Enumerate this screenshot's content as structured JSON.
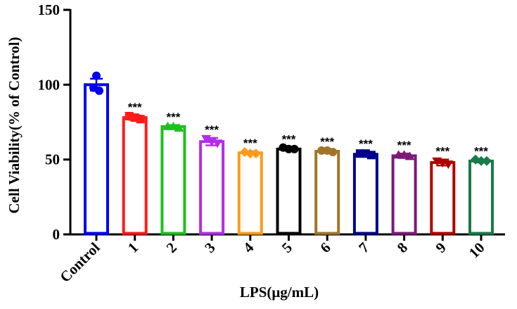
{
  "chart_data": {
    "type": "bar",
    "xlabel": "LPS(μg/mL)",
    "ylabel": "Cell Viability(% of Control)",
    "ylim": [
      0,
      150
    ],
    "yticks": [
      "0",
      "50",
      "100",
      "150"
    ],
    "categories": [
      "Control",
      "1",
      "2",
      "3",
      "4",
      "5",
      "6",
      "7",
      "8",
      "9",
      "10"
    ],
    "values": [
      100,
      78,
      72,
      62,
      54.5,
      57,
      55.5,
      53.5,
      52.5,
      48,
      49
    ],
    "errors": [
      4,
      1.5,
      1,
      2.5,
      1,
      1,
      1,
      1.5,
      1.5,
      2,
      1
    ],
    "points": [
      [
        106,
        98,
        96
      ],
      [
        79,
        78,
        77
      ],
      [
        72,
        72,
        71
      ],
      [
        64,
        62,
        61
      ],
      [
        55,
        54,
        54
      ],
      [
        58,
        57,
        57
      ],
      [
        56,
        56,
        55
      ],
      [
        54,
        54,
        53
      ],
      [
        53,
        53,
        52
      ],
      [
        49,
        48,
        47
      ],
      [
        50,
        49,
        49
      ]
    ],
    "markers": [
      "circle",
      "square",
      "triangle",
      "triangle-down",
      "diamond",
      "circle",
      "circle",
      "square",
      "triangle",
      "triangle-down",
      "diamond"
    ],
    "colors": [
      "#0000f0",
      "#ff1a1a",
      "#1ec01e",
      "#b22ee8",
      "#ff9a1a",
      "#000000",
      "#a0752a",
      "#00008b",
      "#7a1a78",
      "#b00000",
      "#1a7a4a"
    ],
    "significance": [
      "",
      "***",
      "***",
      "***",
      "***",
      "***",
      "***",
      "***",
      "***",
      "***",
      "***"
    ]
  }
}
